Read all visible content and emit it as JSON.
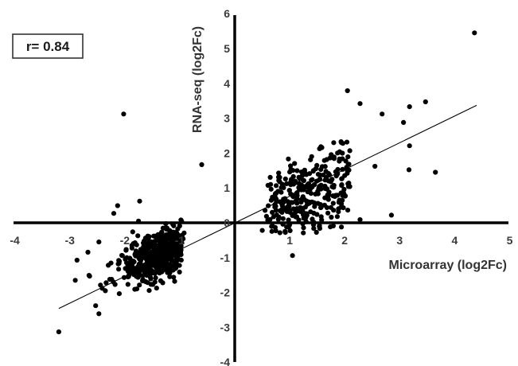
{
  "chart_data": {
    "type": "scatter",
    "annotation": "r= 0.84",
    "xlabel": "Microarray (log2Fc)",
    "ylabel": "RNA-seq (log2Fc)",
    "xlim": [
      -4,
      5
    ],
    "ylim": [
      -4,
      6
    ],
    "x_ticks": [
      -4,
      -3,
      -2,
      -1,
      0,
      1,
      2,
      3,
      4,
      5
    ],
    "y_ticks": [
      -4,
      -3,
      -2,
      -1,
      0,
      1,
      2,
      3,
      4,
      5,
      6
    ],
    "x_tick_labels": [
      "-4",
      "-3",
      "-2",
      "-1",
      "0",
      "1",
      "2",
      "3",
      "4",
      "5"
    ],
    "y_tick_labels": [
      "-4",
      "-3",
      "-2",
      "-1",
      "0",
      "1",
      "2",
      "3",
      "4",
      "5",
      "6"
    ],
    "grid": false,
    "trendline": {
      "x": [
        -3.2,
        4.4
      ],
      "y": [
        -2.46,
        3.37
      ]
    },
    "points": [
      [
        4.36,
        5.45
      ],
      [
        -2.02,
        3.12
      ],
      [
        2.05,
        3.79
      ],
      [
        3.47,
        3.47
      ],
      [
        3.18,
        3.33
      ],
      [
        2.68,
        3.12
      ],
      [
        2.28,
        3.42
      ],
      [
        3.07,
        2.88
      ],
      [
        3.18,
        2.21
      ],
      [
        3.65,
        1.45
      ],
      [
        3.17,
        1.52
      ],
      [
        2.85,
        0.22
      ],
      [
        2.55,
        1.62
      ],
      [
        2.28,
        0.09
      ],
      [
        -0.6,
        1.67
      ],
      [
        -1.73,
        0.62
      ],
      [
        -2.13,
        0.49
      ],
      [
        -2.2,
        0.27
      ],
      [
        -3.2,
        -3.13
      ],
      [
        -2.9,
        -1.65
      ],
      [
        -2.65,
        -1.51
      ],
      [
        -2.47,
        -2.61
      ],
      [
        -2.53,
        -2.38
      ],
      [
        -2.41,
        -1.88
      ],
      [
        -2.47,
        -0.55
      ],
      [
        -1.75,
        0.05
      ],
      [
        1.05,
        -0.94
      ],
      [
        0.5,
        -0.22
      ],
      [
        1.4,
        1.9
      ],
      [
        1.8,
        2.3
      ]
    ]
  }
}
